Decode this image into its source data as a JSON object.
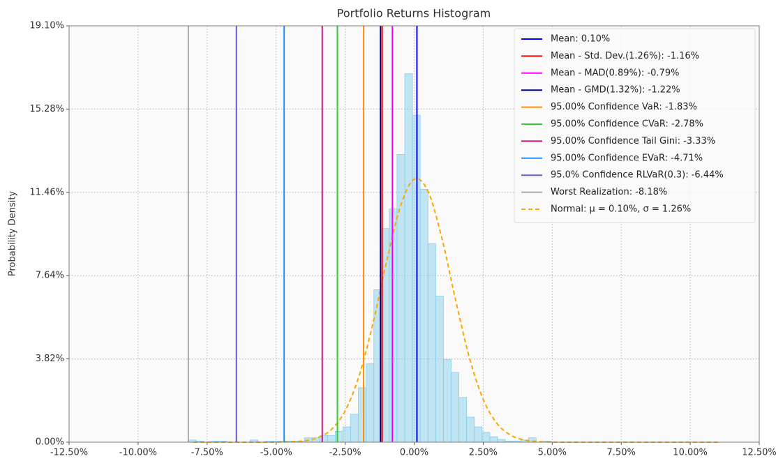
{
  "chart_data": {
    "type": "histogram",
    "title": "Portfolio Returns Histogram",
    "y_label": "Probability Density",
    "bins": [
      -8.18,
      -7.9,
      -7.62,
      -7.34,
      -7.06,
      -6.78,
      -6.5,
      -6.22,
      -5.94,
      -5.66,
      -5.38,
      -5.1,
      -4.82,
      -4.54,
      -4.26,
      -3.98,
      -3.7,
      -3.42,
      -3.14,
      -2.86,
      -2.58,
      -2.3,
      -2.02,
      -1.74,
      -1.46,
      -1.18,
      -0.9,
      -0.62,
      -0.34,
      -0.06,
      0.22,
      0.5,
      0.78,
      1.06,
      1.34,
      1.62,
      1.9,
      2.18,
      2.46,
      2.74,
      3.02,
      3.3,
      3.58,
      3.86,
      4.14,
      4.42,
      4.7,
      4.98
    ],
    "counts": [
      0.1,
      0.05,
      0,
      0.05,
      0.05,
      0,
      0,
      0,
      0.1,
      0,
      0.05,
      0.05,
      0.05,
      0.05,
      0.05,
      0.2,
      0.2,
      0.3,
      0.3,
      0.5,
      0.7,
      1.28,
      2.5,
      3.6,
      7.0,
      9.8,
      10.7,
      13.2,
      16.9,
      15.0,
      11.6,
      9.1,
      6.7,
      3.8,
      3.2,
      2.05,
      1.15,
      0.7,
      0.45,
      0.25,
      0.13,
      0.05,
      0.05,
      0.1,
      0.2,
      0,
      0.05
    ],
    "color": "#87ceeb",
    "xlim": [
      -12.5,
      12.5
    ],
    "ylim": [
      0,
      19.1
    ],
    "xticks": [
      {
        "value": -12.5,
        "label": "-12.50%"
      },
      {
        "value": -10,
        "label": "-10.00%"
      },
      {
        "value": -7.5,
        "label": "-7.50%"
      },
      {
        "value": -5,
        "label": "-5.00%"
      },
      {
        "value": -2.5,
        "label": "-2.50%"
      },
      {
        "value": 0,
        "label": "0.00%"
      },
      {
        "value": 2.5,
        "label": "2.50%"
      },
      {
        "value": 5,
        "label": "5.00%"
      },
      {
        "value": 7.5,
        "label": "7.50%"
      },
      {
        "value": 10,
        "label": "10.00%"
      },
      {
        "value": 12.5,
        "label": "12.50%"
      }
    ],
    "yticks": [
      {
        "value": 0,
        "label": "0.00%"
      },
      {
        "value": 3.82,
        "label": "3.82%"
      },
      {
        "value": 7.64,
        "label": "7.64%"
      },
      {
        "value": 11.46,
        "label": "11.46%"
      },
      {
        "value": 15.28,
        "label": "15.28%"
      },
      {
        "value": 19.1,
        "label": "19.10%"
      }
    ],
    "grid": true,
    "legend": "upper right",
    "lines": [
      {
        "name": "Mean: 0.10%",
        "color": "#0000ff",
        "x": 0.1
      },
      {
        "name": "Mean - Std. Dev.(1.26%): -1.16%",
        "color": "#ff0000",
        "x": -1.16
      },
      {
        "name": "Mean - MAD(0.89%): -0.79%",
        "color": "#ff00ff",
        "x": -0.79
      },
      {
        "name": "Mean - GMD(1.32%): -1.22%",
        "color": "#000080",
        "x": -1.22
      },
      {
        "name": "95.00% Confidence VaR: -1.83%",
        "color": "#ff8c00",
        "x": -1.83
      },
      {
        "name": "95.00% Confidence CVaR: -2.78%",
        "color": "#32cd32",
        "x": -2.78
      },
      {
        "name": "95.00% Confidence Tail Gini: -3.33%",
        "color": "#c71585",
        "x": -3.33
      },
      {
        "name": "95.00% Confidence EVaR: -4.71%",
        "color": "#1e90ff",
        "x": -4.71
      },
      {
        "name": "95.0% Confidence RLVaR(0.3): -6.44%",
        "color": "#6a5acd",
        "x": -6.44
      },
      {
        "name": "Worst Realization: -8.18%",
        "color": "#a9a9a9",
        "x": -8.18
      }
    ],
    "normal": {
      "name": "Normal: μ = 0.10%, σ = 1.26%",
      "color": "#ffa500",
      "x": [
        -8,
        -7.5,
        -7,
        -6.5,
        -6,
        -5.5,
        -5,
        -4.5,
        -4,
        -3.5,
        -3,
        -2.5,
        -2,
        -1.5,
        -1,
        -0.5,
        0,
        0.5,
        1,
        1.5,
        2,
        2.5,
        3,
        3.5,
        4,
        4.5,
        5,
        5.5,
        6,
        6.5,
        7,
        7.5,
        8,
        8.5,
        9,
        9.5,
        10,
        10.5,
        11
      ],
      "values": [
        0,
        0,
        0,
        0,
        0,
        0,
        0.003,
        0.02,
        0.06,
        0.2,
        0.58,
        1.44,
        3.02,
        5.41,
        8.27,
        10.81,
        12.06,
        11.51,
        9.38,
        6.53,
        3.88,
        1.97,
        0.86,
        0.32,
        0.1,
        0.03,
        0.006,
        0,
        0,
        0,
        0,
        0,
        0,
        0,
        0,
        0,
        0,
        0,
        0
      ]
    }
  }
}
